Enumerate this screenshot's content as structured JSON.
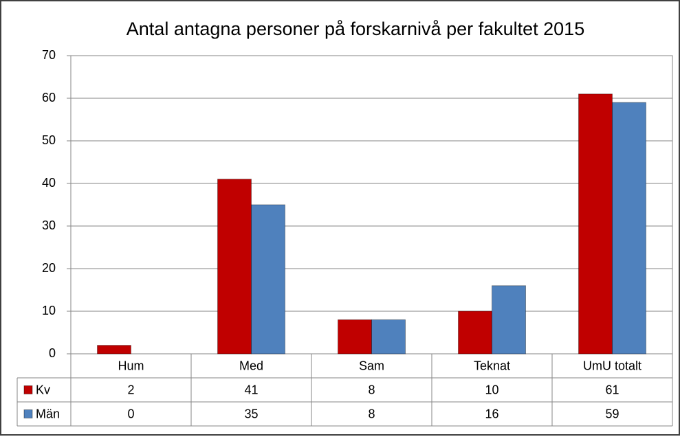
{
  "chart_data": {
    "type": "bar",
    "title": "Antal antagna personer på forskarnivå per fakultet 2015",
    "categories": [
      "Hum",
      "Med",
      "Sam",
      "Teknat",
      "UmU totalt"
    ],
    "series": [
      {
        "name": "Kv",
        "color": "#c00000",
        "values": [
          2,
          41,
          8,
          10,
          61
        ]
      },
      {
        "name": "Män",
        "color": "#4f81bd",
        "values": [
          0,
          35,
          8,
          16,
          59
        ]
      }
    ],
    "ylim": [
      0,
      70
    ],
    "yticks": [
      0,
      10,
      20,
      30,
      40,
      50,
      60,
      70
    ],
    "grid": true
  }
}
